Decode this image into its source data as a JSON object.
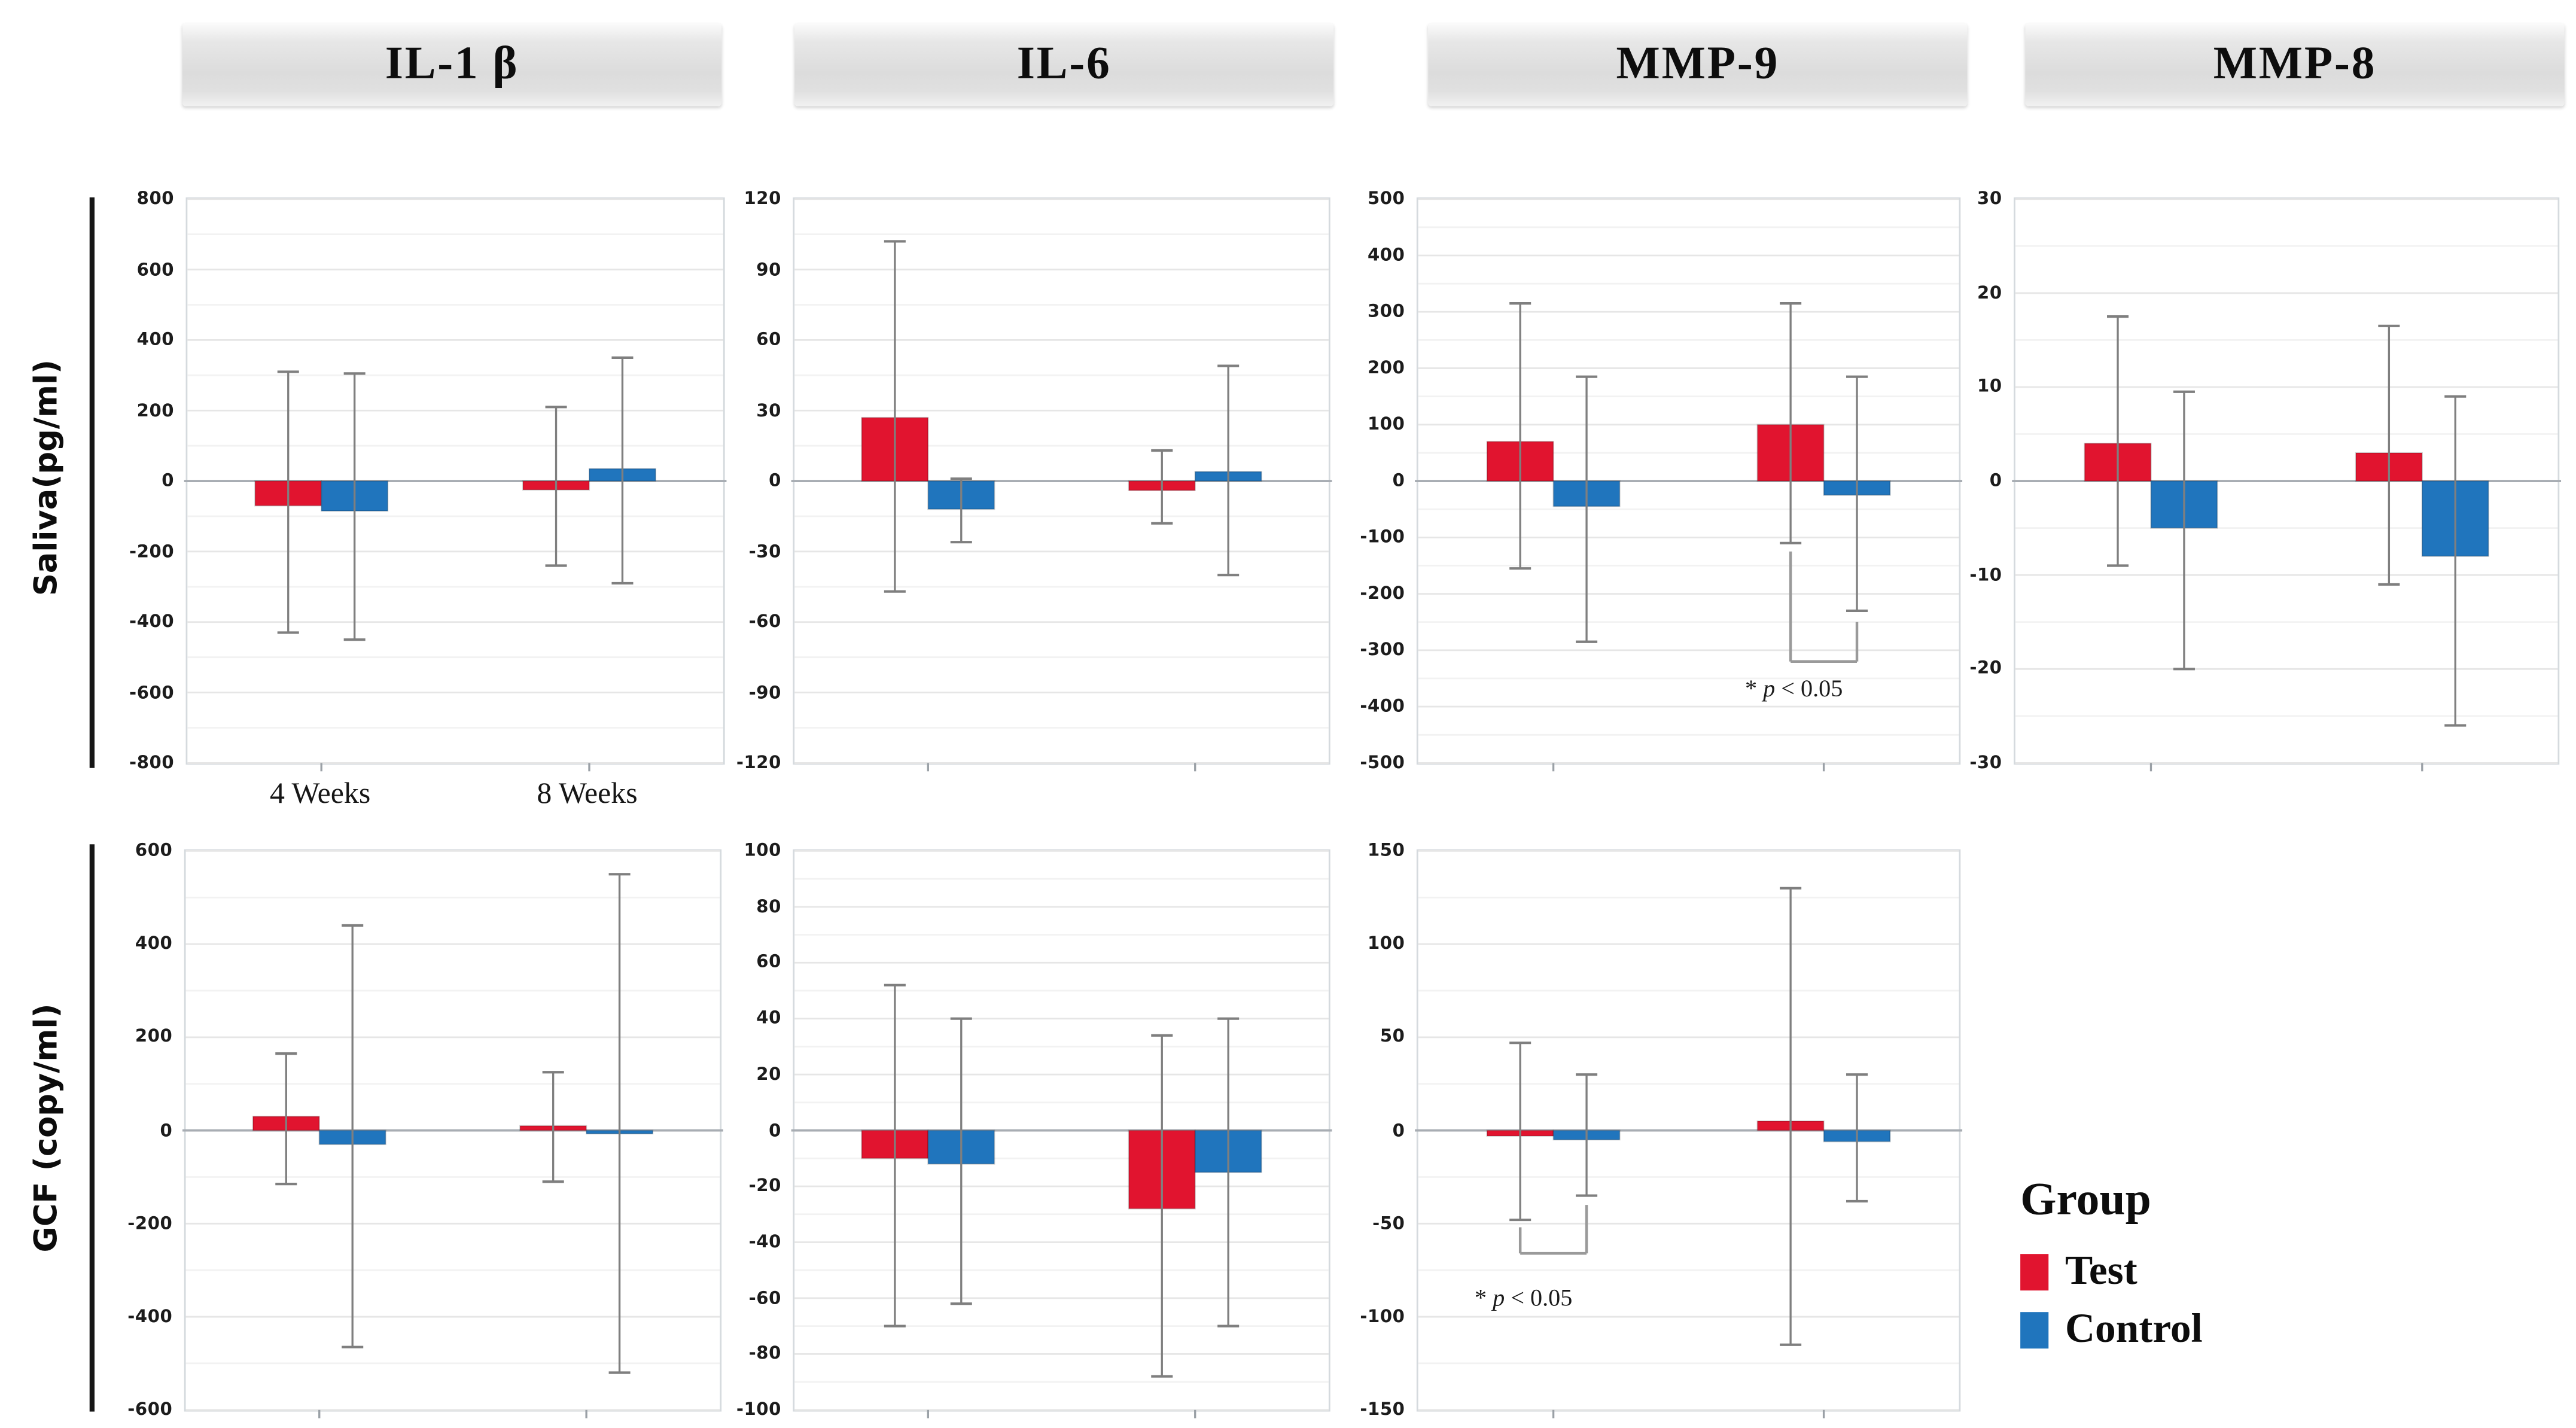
{
  "figure": {
    "background": "#ffffff"
  },
  "columns": [
    {
      "title": "IL-1 β"
    },
    {
      "title": "IL-6"
    },
    {
      "title": "MMP-9"
    },
    {
      "title": "MMP-8"
    }
  ],
  "rows": [
    {
      "label": "Saliva(pg/ml)"
    },
    {
      "label": "GCF (copy/ml)"
    }
  ],
  "legend": {
    "title": "Group",
    "position": "bottom-right",
    "items": [
      {
        "label": "Test",
        "color": "#e1142f"
      },
      {
        "label": "Control",
        "color": "#2075bd"
      }
    ]
  },
  "colors": {
    "test": "#e1142f",
    "control": "#2075bd",
    "error_bar": "#7f7f7f",
    "zero_line": "#a8adb3",
    "grid_major": "#e6e6e6",
    "grid_minor": "#f2f2f2",
    "plot_border": "#d5dade",
    "bracket": "#9a9a9a",
    "axis_tick": "#9aa0a6",
    "text": "#161616"
  },
  "chart_data": [
    {
      "id": "saliva-il1b",
      "type": "bar",
      "row": "Saliva(pg/ml)",
      "column": "IL-1 β",
      "categories": [
        "4 Weeks",
        "8 Weeks"
      ],
      "x_labels_visible": true,
      "ylim": [
        -800,
        800
      ],
      "ytick_step": 200,
      "grid": true,
      "series": [
        {
          "name": "Test",
          "values": [
            -70,
            -25
          ],
          "err_low": [
            -430,
            -240
          ],
          "err_high": [
            310,
            210
          ]
        },
        {
          "name": "Control",
          "values": [
            -85,
            35
          ],
          "err_low": [
            -450,
            -290
          ],
          "err_high": [
            305,
            350
          ]
        }
      ],
      "annotation": null
    },
    {
      "id": "saliva-il6",
      "type": "bar",
      "row": "Saliva(pg/ml)",
      "column": "IL-6",
      "categories": [
        "4 Weeks",
        "8 Weeks"
      ],
      "x_labels_visible": false,
      "ylim": [
        -120,
        120
      ],
      "ytick_step": 30,
      "grid": true,
      "series": [
        {
          "name": "Test",
          "values": [
            27,
            -4
          ],
          "err_low": [
            -47,
            -18
          ],
          "err_high": [
            102,
            13
          ]
        },
        {
          "name": "Control",
          "values": [
            -12,
            4
          ],
          "err_low": [
            -26,
            -40
          ],
          "err_high": [
            1,
            49
          ]
        }
      ],
      "annotation": null
    },
    {
      "id": "saliva-mmp9",
      "type": "bar",
      "row": "Saliva(pg/ml)",
      "column": "MMP-9",
      "categories": [
        "4 Weeks",
        "8 Weeks"
      ],
      "x_labels_visible": false,
      "ylim": [
        -500,
        500
      ],
      "ytick_step": 100,
      "grid": true,
      "series": [
        {
          "name": "Test",
          "values": [
            70,
            100
          ],
          "err_low": [
            -155,
            -110
          ],
          "err_high": [
            315,
            315
          ]
        },
        {
          "name": "Control",
          "values": [
            -45,
            -25
          ],
          "err_low": [
            -285,
            -230
          ],
          "err_high": [
            185,
            185
          ]
        }
      ],
      "annotation": {
        "text": "* p < 0.05",
        "group_index": 1,
        "left_from": -125,
        "right_from": -250,
        "bracket_bottom": -320,
        "text_y": -382
      }
    },
    {
      "id": "saliva-mmp8",
      "type": "bar",
      "row": "Saliva(pg/ml)",
      "column": "MMP-8",
      "categories": [
        "4 Weeks",
        "8 Weeks"
      ],
      "x_labels_visible": false,
      "ylim": [
        -30,
        30
      ],
      "ytick_step": 10,
      "grid": true,
      "series": [
        {
          "name": "Test",
          "values": [
            4,
            3
          ],
          "err_low": [
            -9,
            -11
          ],
          "err_high": [
            17.5,
            16.5
          ]
        },
        {
          "name": "Control",
          "values": [
            -5,
            -8
          ],
          "err_low": [
            -20,
            -26
          ],
          "err_high": [
            9.5,
            9
          ]
        }
      ],
      "annotation": null
    },
    {
      "id": "gcf-il1b",
      "type": "bar",
      "row": "GCF (copy/ml)",
      "column": "IL-1 β",
      "categories": [
        "4 Weeks",
        "8 Weeks"
      ],
      "x_labels_visible": false,
      "ylim": [
        -600,
        600
      ],
      "ytick_step": 200,
      "grid": true,
      "series": [
        {
          "name": "Test",
          "values": [
            30,
            10
          ],
          "err_low": [
            -115,
            -110
          ],
          "err_high": [
            165,
            125
          ]
        },
        {
          "name": "Control",
          "values": [
            -30,
            -5
          ],
          "err_low": [
            -465,
            -520
          ],
          "err_high": [
            440,
            550
          ]
        }
      ],
      "annotation": null
    },
    {
      "id": "gcf-il6",
      "type": "bar",
      "row": "GCF (copy/ml)",
      "column": "IL-6",
      "categories": [
        "4 Weeks",
        "8 Weeks"
      ],
      "x_labels_visible": false,
      "ylim": [
        -100,
        100
      ],
      "ytick_step": 20,
      "grid": true,
      "series": [
        {
          "name": "Test",
          "values": [
            -10,
            -28
          ],
          "err_low": [
            -70,
            -88
          ],
          "err_high": [
            52,
            34
          ]
        },
        {
          "name": "Control",
          "values": [
            -12,
            -15
          ],
          "err_low": [
            -62,
            -70
          ],
          "err_high": [
            40,
            40
          ]
        }
      ],
      "annotation": null
    },
    {
      "id": "gcf-mmp9",
      "type": "bar",
      "row": "GCF (copy/ml)",
      "column": "MMP-9",
      "categories": [
        "4 Weeks",
        "8 Weeks"
      ],
      "x_labels_visible": false,
      "ylim": [
        -150,
        150
      ],
      "ytick_step": 50,
      "grid": true,
      "series": [
        {
          "name": "Test",
          "values": [
            -3,
            5
          ],
          "err_low": [
            -48,
            -115
          ],
          "err_high": [
            47,
            130
          ]
        },
        {
          "name": "Control",
          "values": [
            -5,
            -6
          ],
          "err_low": [
            -35,
            -38
          ],
          "err_high": [
            30,
            30
          ]
        }
      ],
      "annotation": {
        "text": "* p < 0.05",
        "group_index": 0,
        "left_from": -52,
        "right_from": -40,
        "bracket_bottom": -66,
        "text_y": -94
      }
    }
  ]
}
